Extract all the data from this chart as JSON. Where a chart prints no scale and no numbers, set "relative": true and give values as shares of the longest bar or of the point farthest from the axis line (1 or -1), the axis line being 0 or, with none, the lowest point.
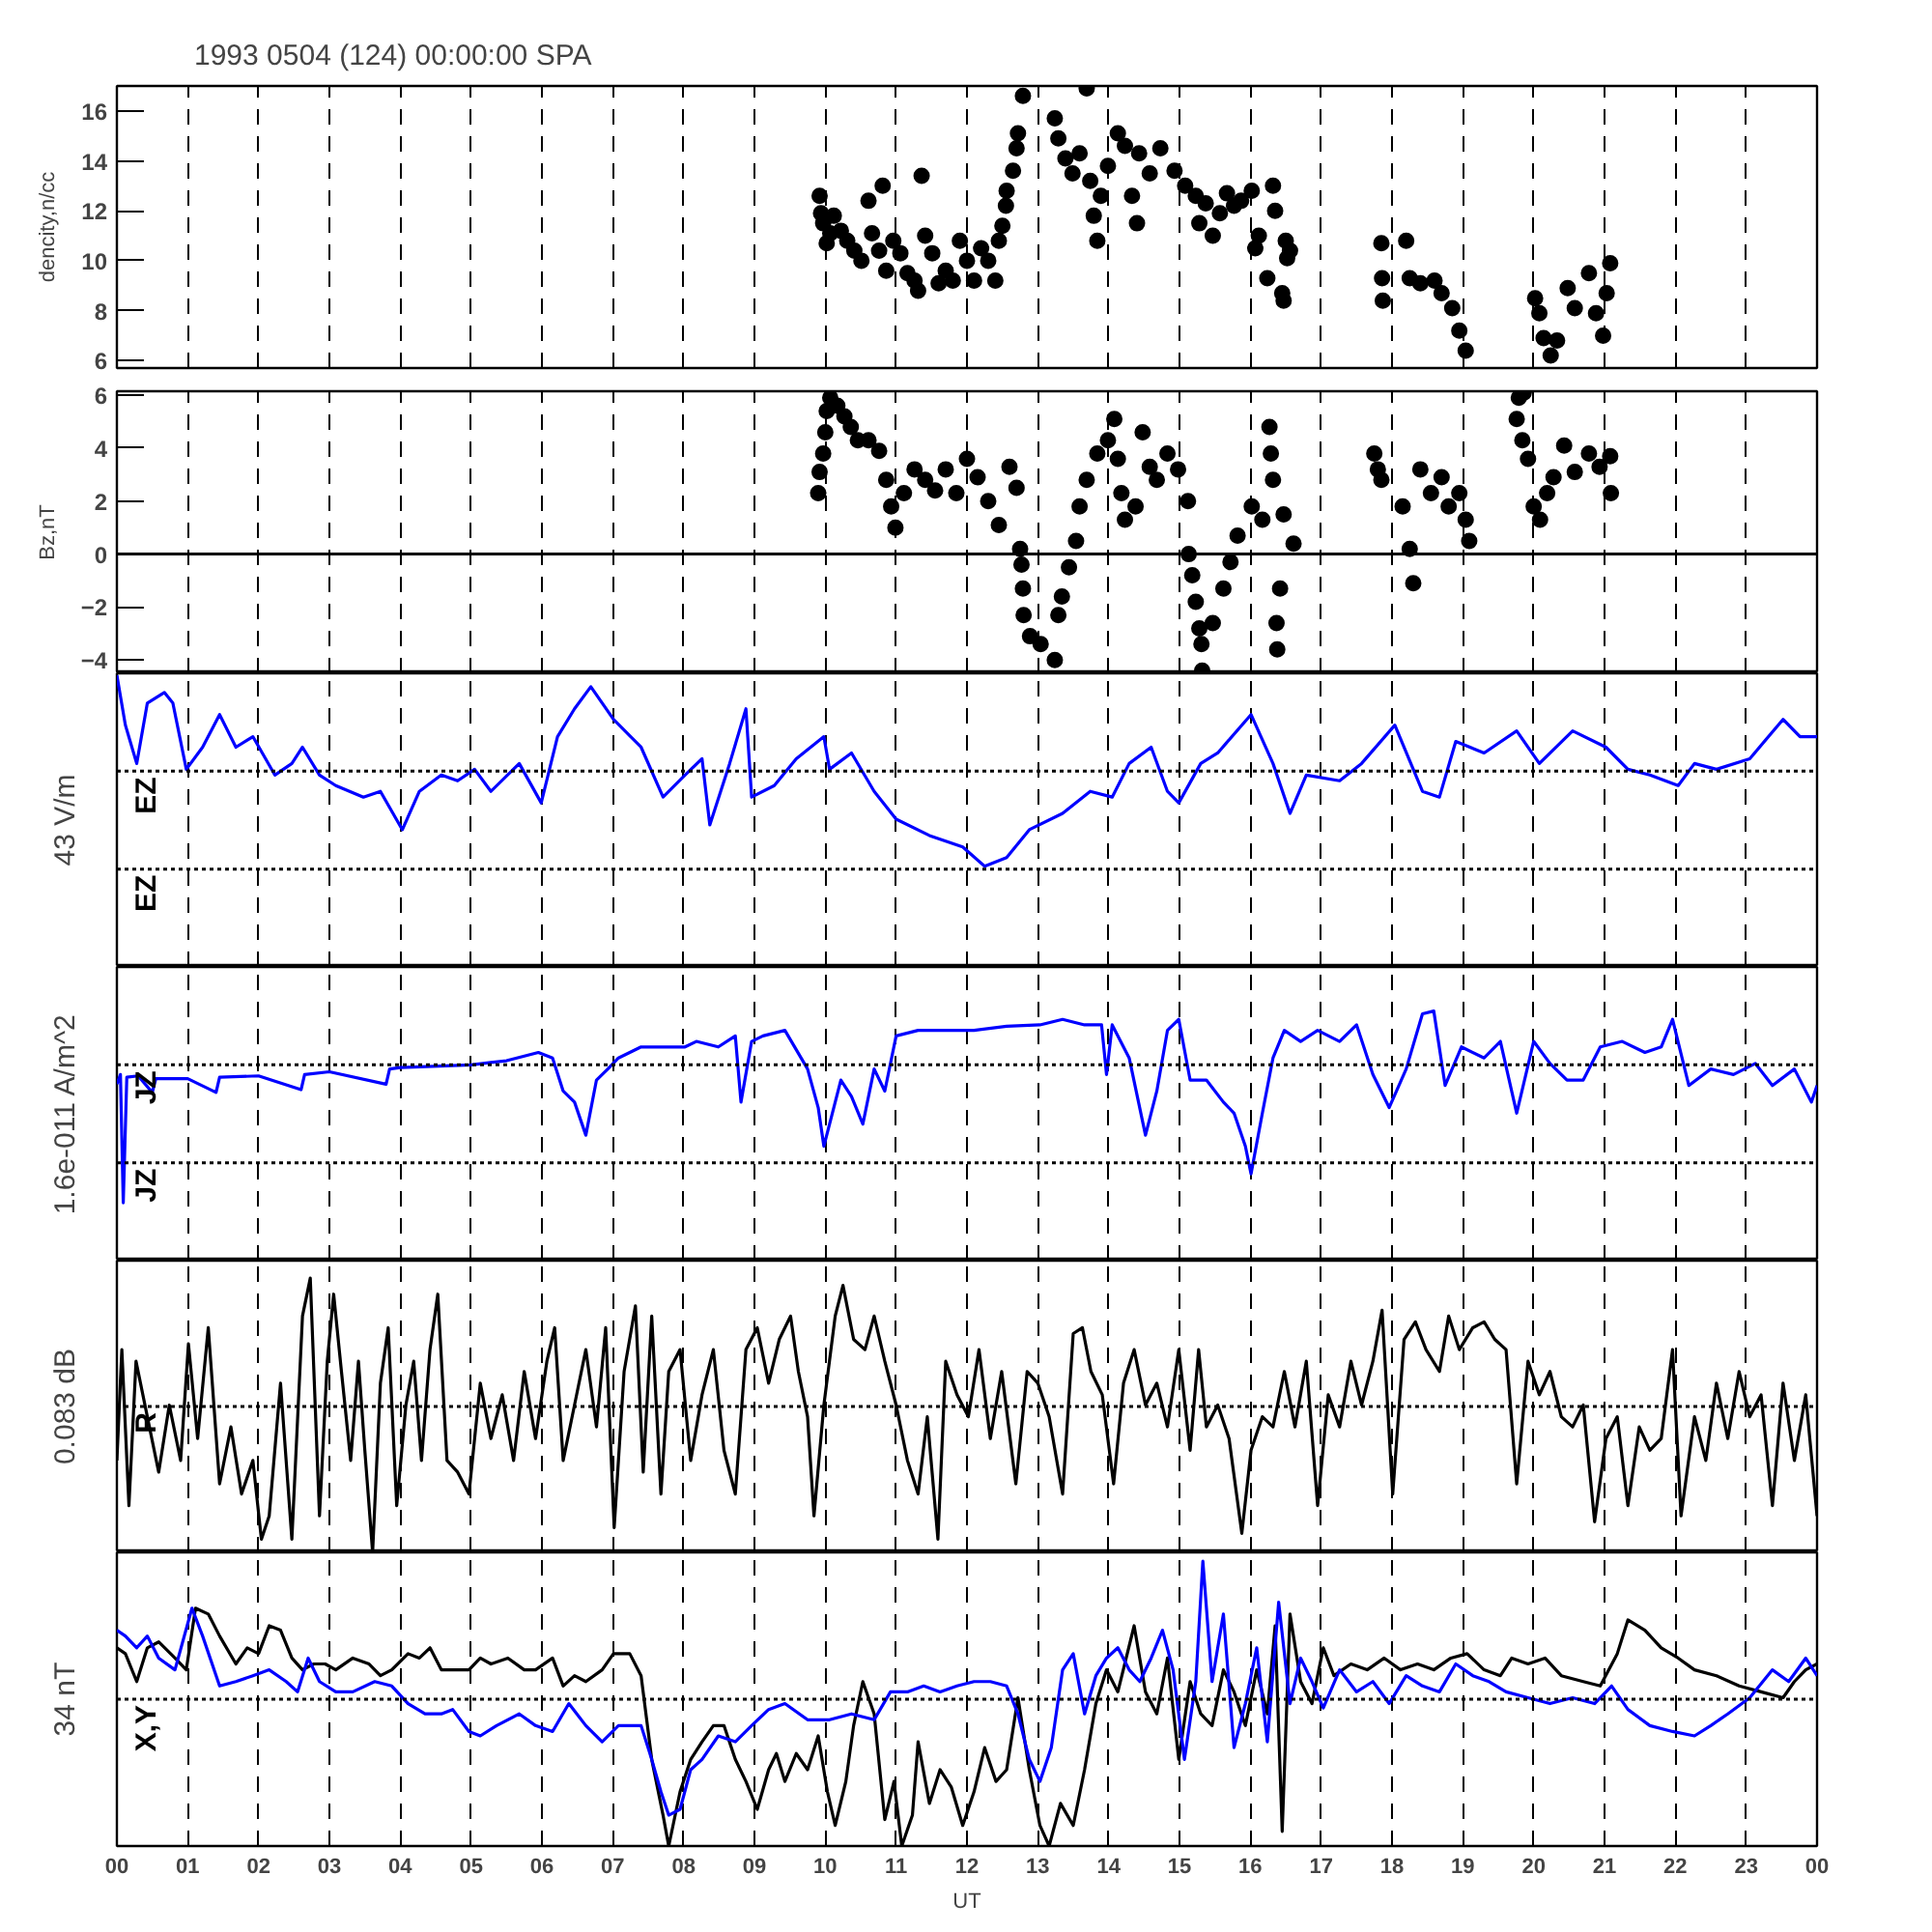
{
  "chart_data": [
    {
      "type": "scatter",
      "title": "1993 0504 (124) 00:00:00 SPA",
      "ylabel": "dencity,n/cc",
      "color": "#000000",
      "marker": "circle",
      "x": [
        9.92,
        9.94,
        9.97,
        10.02,
        10.07,
        10.12,
        10.22,
        10.31,
        10.41,
        10.51,
        10.61,
        10.66,
        10.76,
        10.81,
        10.86,
        10.96,
        11.06,
        11.16,
        11.26,
        11.31,
        11.36,
        11.41,
        11.51,
        11.6,
        11.7,
        11.8,
        11.9,
        12.0,
        12.1,
        12.2,
        12.3,
        12.4,
        12.45,
        12.5,
        12.55,
        12.56,
        12.65,
        12.7,
        12.72,
        12.79,
        13.24,
        13.29,
        13.39,
        13.49,
        13.59,
        13.69,
        13.74,
        13.79,
        13.84,
        13.89,
        13.99,
        14.13,
        14.23,
        14.33,
        14.4,
        14.43,
        14.58,
        14.73,
        14.93,
        15.08,
        15.23,
        15.28,
        15.37,
        15.47,
        15.57,
        15.67,
        15.77,
        15.87,
        16.02,
        16.07,
        16.12,
        16.24,
        16.32,
        16.35,
        16.45,
        16.47,
        16.5,
        16.52,
        16.56,
        17.85,
        17.86,
        17.87,
        18.2,
        18.25,
        18.4,
        18.6,
        18.7,
        18.85,
        18.95,
        19.04,
        20.02,
        20.08,
        20.14,
        20.24,
        20.33,
        20.48,
        20.58,
        20.78,
        20.88,
        20.98,
        21.03,
        21.08
      ],
      "values": [
        12.6,
        11.9,
        11.5,
        10.7,
        11.1,
        11.8,
        11.2,
        10.8,
        10.4,
        10.0,
        12.4,
        11.1,
        10.4,
        13.0,
        9.6,
        10.8,
        10.3,
        9.5,
        9.2,
        8.8,
        13.4,
        11.0,
        10.3,
        9.1,
        9.6,
        9.2,
        10.8,
        10.0,
        9.2,
        10.5,
        10.0,
        9.2,
        10.8,
        11.4,
        12.2,
        12.8,
        13.6,
        14.5,
        15.1,
        16.6,
        15.7,
        14.9,
        14.1,
        13.5,
        14.3,
        16.9,
        13.2,
        11.8,
        10.8,
        12.6,
        13.8,
        15.1,
        14.6,
        12.6,
        11.5,
        14.3,
        13.5,
        14.5,
        13.6,
        13.0,
        12.6,
        11.5,
        12.3,
        11.0,
        11.9,
        12.7,
        12.2,
        12.4,
        12.8,
        10.5,
        11.0,
        9.3,
        13.0,
        12.0,
        8.7,
        8.4,
        10.8,
        10.1,
        10.4,
        10.7,
        9.3,
        8.4,
        10.8,
        9.3,
        9.1,
        9.2,
        8.7,
        8.1,
        7.2,
        6.4,
        8.5,
        7.9,
        6.9,
        6.2,
        6.8,
        8.9,
        8.1,
        9.5,
        7.9,
        7.0,
        8.7,
        9.9
      ],
      "xlim": [
        0,
        24
      ],
      "xticks": [
        0,
        1,
        2,
        3,
        4,
        5,
        6,
        7,
        8,
        9,
        10,
        11,
        12,
        13,
        14,
        15,
        16,
        17,
        18,
        19,
        20,
        21,
        22,
        23,
        24
      ],
      "ylim": [
        5.7,
        17
      ],
      "yticks": [
        6,
        8,
        10,
        12,
        14,
        16
      ],
      "grid": "x",
      "tick_labels": "y"
    },
    {
      "type": "scatter",
      "ylabel": "Bz,nT",
      "color": "#000000",
      "marker": "circle",
      "x": [
        9.9,
        9.92,
        9.97,
        10.0,
        10.02,
        10.07,
        10.17,
        10.27,
        10.36,
        10.46,
        10.61,
        10.76,
        10.86,
        10.93,
        10.99,
        11.11,
        11.26,
        11.41,
        11.55,
        11.7,
        11.85,
        12.0,
        12.15,
        12.3,
        12.45,
        12.6,
        12.7,
        12.75,
        12.77,
        12.79,
        12.8,
        12.89,
        13.04,
        13.24,
        13.29,
        13.34,
        13.44,
        13.54,
        13.59,
        13.69,
        13.84,
        13.99,
        14.08,
        14.13,
        14.18,
        14.23,
        14.38,
        14.48,
        14.58,
        14.68,
        14.83,
        14.98,
        15.12,
        15.13,
        15.18,
        15.23,
        15.28,
        15.31,
        15.32,
        15.47,
        15.62,
        15.72,
        15.82,
        16.02,
        16.17,
        16.27,
        16.29,
        16.32,
        16.37,
        16.38,
        16.42,
        16.47,
        16.61,
        17.75,
        17.8,
        17.85,
        18.15,
        18.25,
        18.3,
        18.4,
        18.55,
        18.7,
        18.8,
        18.95,
        19.04,
        19.09,
        19.76,
        19.79,
        19.84,
        19.86,
        19.92,
        20.0,
        20.09,
        20.19,
        20.28,
        20.43,
        20.58,
        20.78,
        20.93,
        21.08,
        21.09
      ],
      "values": [
        2.3,
        3.1,
        3.8,
        4.6,
        5.4,
        5.9,
        5.6,
        5.2,
        4.8,
        4.3,
        4.3,
        3.9,
        2.8,
        1.8,
        1.0,
        2.3,
        3.2,
        2.8,
        2.4,
        3.2,
        2.3,
        3.6,
        2.9,
        2.0,
        1.1,
        3.3,
        2.5,
        0.2,
        -0.4,
        -1.3,
        -2.3,
        -3.1,
        -3.4,
        -4.0,
        -2.3,
        -1.6,
        -0.5,
        0.5,
        1.8,
        2.8,
        3.8,
        4.3,
        5.1,
        3.6,
        2.3,
        1.3,
        1.8,
        4.6,
        3.3,
        2.8,
        3.8,
        3.2,
        2.0,
        0.0,
        -0.8,
        -1.8,
        -2.8,
        -3.4,
        -4.4,
        -2.6,
        -1.3,
        -0.3,
        0.7,
        1.8,
        1.3,
        4.8,
        3.8,
        2.8,
        -2.6,
        -3.6,
        -1.3,
        1.5,
        0.4,
        3.8,
        3.2,
        2.8,
        1.8,
        0.2,
        -1.1,
        3.2,
        2.3,
        2.9,
        1.8,
        2.3,
        1.3,
        0.5,
        5.1,
        5.9,
        4.3,
        6.1,
        3.6,
        1.8,
        1.3,
        2.3,
        2.9,
        4.1,
        3.1,
        3.8,
        3.3,
        3.7,
        2.3
      ],
      "xlim": [
        0,
        24
      ],
      "xticks": [
        0,
        1,
        2,
        3,
        4,
        5,
        6,
        7,
        8,
        9,
        10,
        11,
        12,
        13,
        14,
        15,
        16,
        17,
        18,
        19,
        20,
        21,
        22,
        23,
        24
      ],
      "ylim": [
        -4.5,
        6.15
      ],
      "yticks": [
        -4,
        -2,
        0,
        2,
        4,
        6
      ],
      "ref_lines": [
        {
          "axis": "y",
          "value": 0,
          "line_style": "solid"
        }
      ],
      "grid": "x",
      "tick_labels": "y"
    },
    {
      "type": "line",
      "relative": true,
      "ylabel": "43 V/m",
      "series": [
        {
          "color": "#0000ff",
          "x": [
            0,
            0.12,
            0.28,
            0.43,
            0.67,
            0.79,
            0.98,
            1.21,
            1.45,
            1.68,
            1.92,
            2.23,
            2.47,
            2.62,
            2.86,
            3.09,
            3.48,
            3.72,
            4.03,
            4.27,
            4.58,
            4.81,
            5.05,
            5.28,
            5.68,
            5.99,
            6.22,
            6.46,
            6.69,
            7.01,
            7.4,
            7.71,
            8.02,
            8.26,
            8.37,
            8.65,
            8.88,
            8.96,
            9.28,
            9.59,
            9.98,
            10.06,
            10.37,
            10.69,
            11.0,
            11.47,
            11.94,
            12.25,
            12.56,
            12.88,
            13.35,
            13.74,
            14.05,
            14.29,
            14.6,
            14.83,
            14.99,
            15.3,
            15.54,
            16.01,
            16.32,
            16.56,
            16.79,
            17.26,
            17.57,
            18.04,
            18.43,
            18.67,
            18.9,
            19.3,
            19.76,
            20.08,
            20.55,
            21.02,
            21.33,
            21.64,
            22.04,
            22.27,
            22.58,
            23.05,
            23.52,
            23.76,
            24
          ],
          "values": [
            1.0,
            0.48,
            0.08,
            0.71,
            0.82,
            0.71,
            0.02,
            0.25,
            0.59,
            0.25,
            0.36,
            -0.04,
            0.08,
            0.25,
            -0.04,
            -0.15,
            -0.27,
            -0.21,
            -0.61,
            -0.21,
            -0.04,
            -0.1,
            0.02,
            -0.21,
            0.08,
            -0.33,
            0.36,
            0.65,
            0.88,
            0.54,
            0.25,
            -0.27,
            -0.04,
            0.13,
            -0.56,
            0.08,
            0.65,
            -0.27,
            -0.15,
            0.13,
            0.36,
            0.02,
            0.19,
            -0.21,
            -0.5,
            -0.67,
            -0.79,
            -0.99,
            -0.9,
            -0.61,
            -0.44,
            -0.21,
            -0.27,
            0.08,
            0.25,
            -0.21,
            -0.33,
            0.08,
            0.19,
            0.59,
            0.08,
            -0.44,
            -0.04,
            -0.1,
            0.08,
            0.48,
            -0.21,
            -0.27,
            0.31,
            0.19,
            0.42,
            0.08,
            0.42,
            0.25,
            0.02,
            -0.04,
            -0.15,
            0.08,
            0.02,
            0.13,
            0.54,
            0.36,
            0.36
          ]
        }
      ],
      "ref_lines": [
        {
          "axis": "y",
          "value": 0,
          "label": "EZ",
          "line_style": "dotted"
        },
        {
          "axis": "y",
          "value": -1.02,
          "label": "EZ",
          "line_style": "dotted"
        }
      ],
      "xlim": [
        0,
        24
      ],
      "xticks": [
        0,
        1,
        2,
        3,
        4,
        5,
        6,
        7,
        8,
        9,
        10,
        11,
        12,
        13,
        14,
        15,
        16,
        17,
        18,
        19,
        20,
        21,
        22,
        23,
        24
      ],
      "grid": "x",
      "tick_labels": false
    },
    {
      "type": "line",
      "relative": true,
      "ylabel": "1.6e-011 A/m^2",
      "series": [
        {
          "color": "#0000ff",
          "x": [
            0,
            0.05,
            0.09,
            0.14,
            0.3,
            0.5,
            0.55,
            1.0,
            1.4,
            1.45,
            2.0,
            2.6,
            2.65,
            3.0,
            3.8,
            3.85,
            4.0,
            5.0,
            5.5,
            5.95,
            6.15,
            6.3,
            6.46,
            6.62,
            6.77,
            6.93,
            7.08,
            7.4,
            7.71,
            8.02,
            8.18,
            8.49,
            8.73,
            8.81,
            8.96,
            9.12,
            9.43,
            9.75,
            9.9,
            9.98,
            10.22,
            10.37,
            10.53,
            10.69,
            10.84,
            11.0,
            11.31,
            11.62,
            12.1,
            12.56,
            13.03,
            13.35,
            13.66,
            13.9,
            13.97,
            14.05,
            14.29,
            14.52,
            14.68,
            14.83,
            14.99,
            15.15,
            15.38,
            15.62,
            15.77,
            15.93,
            16.01,
            16.17,
            16.32,
            16.48,
            16.71,
            16.95,
            17.26,
            17.5,
            17.73,
            17.96,
            18.2,
            18.43,
            18.59,
            18.75,
            18.98,
            19.3,
            19.53,
            19.76,
            20.0,
            20.23,
            20.47,
            20.7,
            20.94,
            21.25,
            21.57,
            21.8,
            21.96,
            22.19,
            22.5,
            22.82,
            23.13,
            23.37,
            23.68,
            23.92,
            24
          ],
          "values": [
            -0.14,
            -0.07,
            -1.0,
            -0.09,
            -0.08,
            -0.2,
            -0.1,
            -0.1,
            -0.2,
            -0.09,
            -0.08,
            -0.18,
            -0.07,
            -0.05,
            -0.14,
            -0.03,
            -0.02,
            0.0,
            0.03,
            0.09,
            0.05,
            -0.19,
            -0.27,
            -0.51,
            -0.11,
            -0.03,
            0.05,
            0.13,
            0.13,
            0.13,
            0.17,
            0.13,
            0.21,
            -0.27,
            0.17,
            0.21,
            0.25,
            -0.03,
            -0.31,
            -0.59,
            -0.11,
            -0.23,
            -0.43,
            -0.03,
            -0.19,
            0.21,
            0.25,
            0.25,
            0.25,
            0.28,
            0.29,
            0.33,
            0.29,
            0.29,
            -0.07,
            0.29,
            0.05,
            -0.51,
            -0.19,
            0.25,
            0.33,
            -0.11,
            -0.11,
            -0.27,
            -0.35,
            -0.59,
            -0.79,
            -0.35,
            0.05,
            0.25,
            0.17,
            0.25,
            0.17,
            0.29,
            -0.07,
            -0.31,
            -0.03,
            0.37,
            0.39,
            -0.15,
            0.13,
            0.05,
            0.17,
            -0.35,
            0.17,
            0.01,
            -0.11,
            -0.11,
            0.13,
            0.17,
            0.09,
            0.13,
            0.33,
            -0.15,
            -0.03,
            -0.07,
            0.01,
            -0.15,
            -0.03,
            -0.27,
            -0.15
          ]
        }
      ],
      "ref_lines": [
        {
          "axis": "y",
          "value": 0,
          "label": "JZ",
          "line_style": "dotted"
        },
        {
          "axis": "y",
          "value": -0.71,
          "label": "JZ",
          "line_style": "dotted"
        }
      ],
      "xlim": [
        0,
        24
      ],
      "xticks": [
        0,
        1,
        2,
        3,
        4,
        5,
        6,
        7,
        8,
        9,
        10,
        11,
        12,
        13,
        14,
        15,
        16,
        17,
        18,
        19,
        20,
        21,
        22,
        23,
        24
      ],
      "grid": "x",
      "tick_labels": false
    },
    {
      "type": "line",
      "relative": true,
      "ylabel": "0.083 dB",
      "series": [
        {
          "color": "#000000",
          "x": [
            0,
            0.07,
            0.17,
            0.27,
            0.43,
            0.59,
            0.74,
            0.9,
            1.01,
            1.14,
            1.29,
            1.45,
            1.61,
            1.76,
            1.92,
            2.04,
            2.15,
            2.31,
            2.47,
            2.62,
            2.73,
            2.86,
            2.97,
            3.06,
            3.17,
            3.3,
            3.41,
            3.5,
            3.61,
            3.72,
            3.83,
            3.95,
            4.08,
            4.19,
            4.3,
            4.42,
            4.53,
            4.66,
            4.81,
            4.97,
            5.13,
            5.28,
            5.44,
            5.6,
            5.75,
            5.91,
            6.07,
            6.18,
            6.3,
            6.46,
            6.62,
            6.77,
            6.9,
            7.02,
            7.16,
            7.32,
            7.43,
            7.55,
            7.68,
            7.79,
            7.95,
            8.1,
            8.26,
            8.42,
            8.57,
            8.73,
            8.88,
            9.04,
            9.2,
            9.35,
            9.51,
            9.62,
            9.75,
            9.84,
            9.98,
            10.14,
            10.25,
            10.4,
            10.56,
            10.69,
            10.84,
            11.0,
            11.16,
            11.31,
            11.44,
            11.59,
            11.7,
            11.86,
            12.02,
            12.17,
            12.33,
            12.49,
            12.69,
            12.85,
            13.0,
            13.16,
            13.35,
            13.5,
            13.63,
            13.75,
            13.91,
            14.07,
            14.21,
            14.36,
            14.52,
            14.68,
            14.83,
            14.99,
            15.15,
            15.27,
            15.38,
            15.54,
            15.7,
            15.88,
            16.01,
            16.17,
            16.32,
            16.48,
            16.63,
            16.79,
            16.95,
            17.1,
            17.26,
            17.42,
            17.57,
            17.73,
            17.86,
            18.01,
            18.17,
            18.33,
            18.48,
            18.67,
            18.8,
            18.95,
            19.14,
            19.3,
            19.45,
            19.61,
            19.76,
            19.92,
            20.08,
            20.23,
            20.39,
            20.55,
            20.7,
            20.86,
            21.02,
            21.18,
            21.33,
            21.49,
            21.64,
            21.8,
            21.96,
            22.08,
            22.27,
            22.43,
            22.58,
            22.74,
            22.9,
            23.05,
            23.21,
            23.37,
            23.52,
            23.68,
            23.84,
            24
          ],
          "values": [
            -0.37,
            0.39,
            -0.68,
            0.31,
            -0.07,
            -0.45,
            0.01,
            -0.37,
            0.43,
            -0.22,
            0.54,
            -0.53,
            -0.14,
            -0.6,
            -0.37,
            -0.91,
            -0.75,
            0.16,
            -0.91,
            0.62,
            0.88,
            -0.75,
            0.31,
            0.77,
            0.24,
            -0.37,
            0.31,
            -0.3,
            -1.0,
            0.16,
            0.54,
            -0.68,
            0.01,
            0.31,
            -0.37,
            0.39,
            0.77,
            -0.37,
            -0.45,
            -0.6,
            0.16,
            -0.22,
            0.08,
            -0.37,
            0.24,
            -0.22,
            0.31,
            0.54,
            -0.37,
            0.01,
            0.39,
            -0.14,
            0.54,
            -0.83,
            0.24,
            0.69,
            -0.45,
            0.62,
            -0.6,
            0.24,
            0.39,
            -0.37,
            0.08,
            0.39,
            -0.3,
            -0.6,
            0.39,
            0.54,
            0.16,
            0.46,
            0.62,
            0.24,
            -0.07,
            -0.75,
            0.01,
            0.62,
            0.83,
            0.46,
            0.39,
            0.62,
            0.31,
            0.01,
            -0.37,
            -0.6,
            -0.07,
            -0.91,
            0.31,
            0.08,
            -0.07,
            0.39,
            -0.22,
            0.24,
            -0.53,
            0.24,
            0.16,
            -0.07,
            -0.6,
            0.5,
            0.54,
            0.24,
            0.08,
            -0.53,
            0.16,
            0.39,
            0.01,
            0.16,
            -0.14,
            0.39,
            -0.3,
            0.39,
            -0.14,
            0.01,
            -0.22,
            -0.87,
            -0.3,
            -0.07,
            -0.14,
            0.24,
            -0.14,
            0.31,
            -0.68,
            0.08,
            -0.14,
            0.31,
            0.01,
            0.31,
            0.66,
            -0.6,
            0.46,
            0.58,
            0.39,
            0.24,
            0.62,
            0.39,
            0.54,
            0.58,
            0.46,
            0.39,
            -0.53,
            0.31,
            0.08,
            0.24,
            -0.07,
            -0.14,
            0.01,
            -0.79,
            -0.22,
            -0.07,
            -0.68,
            -0.14,
            -0.3,
            -0.22,
            0.39,
            -0.75,
            -0.07,
            -0.37,
            0.16,
            -0.22,
            0.24,
            -0.07,
            0.08,
            -0.68,
            0.16,
            -0.37,
            0.08,
            -0.75
          ]
        }
      ],
      "ref_lines": [
        {
          "axis": "y",
          "value": 0,
          "label": "R",
          "line_style": "dotted"
        }
      ],
      "xlim": [
        0,
        24
      ],
      "xticks": [
        0,
        1,
        2,
        3,
        4,
        5,
        6,
        7,
        8,
        9,
        10,
        11,
        12,
        13,
        14,
        15,
        16,
        17,
        18,
        19,
        20,
        21,
        22,
        23,
        24
      ],
      "grid": "x",
      "tick_labels": false
    },
    {
      "type": "line",
      "relative": true,
      "ylabel": "34 nT",
      "xlabel": "UT",
      "series": [
        {
          "color": "#000000",
          "x": [
            0,
            0.12,
            0.28,
            0.43,
            0.59,
            0.82,
            0.98,
            1.11,
            1.29,
            1.45,
            1.68,
            1.84,
            2.0,
            2.15,
            2.31,
            2.47,
            2.62,
            2.78,
            2.94,
            3.09,
            3.33,
            3.56,
            3.72,
            3.88,
            4.11,
            4.27,
            4.42,
            4.58,
            4.74,
            4.97,
            5.13,
            5.28,
            5.52,
            5.75,
            5.91,
            6.15,
            6.3,
            6.46,
            6.62,
            6.85,
            7.01,
            7.24,
            7.4,
            7.55,
            7.71,
            7.79,
            7.95,
            8.1,
            8.26,
            8.42,
            8.57,
            8.73,
            8.88,
            9.04,
            9.2,
            9.31,
            9.43,
            9.59,
            9.75,
            9.9,
            10.03,
            10.14,
            10.29,
            10.4,
            10.53,
            10.69,
            10.84,
            10.97,
            11.08,
            11.23,
            11.31,
            11.47,
            11.62,
            11.78,
            11.94,
            12.1,
            12.25,
            12.41,
            12.56,
            12.72,
            12.88,
            13.03,
            13.16,
            13.32,
            13.5,
            13.66,
            13.82,
            13.97,
            14.13,
            14.36,
            14.52,
            14.68,
            14.83,
            14.99,
            15.15,
            15.3,
            15.46,
            15.62,
            15.77,
            15.93,
            16.09,
            16.24,
            16.35,
            16.45,
            16.56,
            16.71,
            16.87,
            17.03,
            17.18,
            17.42,
            17.65,
            17.89,
            18.12,
            18.36,
            18.59,
            18.83,
            19.06,
            19.3,
            19.53,
            19.69,
            19.92,
            20.16,
            20.39,
            20.7,
            20.94,
            21.18,
            21.33,
            21.57,
            21.8,
            22.04,
            22.27,
            22.58,
            22.9,
            23.21,
            23.52,
            23.68,
            23.84,
            24
          ],
          "values": [
            0.35,
            0.31,
            0.12,
            0.35,
            0.39,
            0.28,
            0.2,
            0.62,
            0.58,
            0.43,
            0.24,
            0.35,
            0.31,
            0.5,
            0.47,
            0.28,
            0.2,
            0.24,
            0.24,
            0.2,
            0.28,
            0.24,
            0.16,
            0.2,
            0.31,
            0.28,
            0.35,
            0.2,
            0.2,
            0.2,
            0.28,
            0.24,
            0.28,
            0.2,
            0.2,
            0.28,
            0.09,
            0.16,
            0.12,
            0.2,
            0.31,
            0.31,
            0.16,
            -0.41,
            -0.79,
            -1.0,
            -0.63,
            -0.41,
            -0.29,
            -0.18,
            -0.18,
            -0.41,
            -0.56,
            -0.75,
            -0.48,
            -0.37,
            -0.56,
            -0.37,
            -0.48,
            -0.25,
            -0.63,
            -0.86,
            -0.56,
            -0.18,
            0.12,
            -0.1,
            -0.82,
            -0.56,
            -1.0,
            -0.79,
            -0.29,
            -0.71,
            -0.48,
            -0.6,
            -0.86,
            -0.63,
            -0.33,
            -0.56,
            -0.48,
            0.01,
            -0.48,
            -0.86,
            -1.0,
            -0.71,
            -0.86,
            -0.48,
            -0.03,
            0.2,
            0.05,
            0.5,
            0.05,
            -0.1,
            0.28,
            -0.41,
            0.12,
            -0.1,
            -0.18,
            0.2,
            0.05,
            -0.18,
            0.2,
            -0.1,
            0.5,
            -0.9,
            0.58,
            0.12,
            -0.03,
            0.35,
            0.16,
            0.24,
            0.2,
            0.28,
            0.2,
            0.24,
            0.2,
            0.28,
            0.31,
            0.2,
            0.16,
            0.28,
            0.24,
            0.28,
            0.16,
            0.12,
            0.09,
            0.31,
            0.54,
            0.47,
            0.35,
            0.28,
            0.2,
            0.16,
            0.09,
            0.05,
            0.01,
            0.12,
            0.2,
            0.24
          ]
        },
        {
          "color": "#0000ff",
          "x": [
            0,
            0.12,
            0.28,
            0.43,
            0.59,
            0.82,
            1.06,
            1.21,
            1.45,
            1.68,
            1.92,
            2.15,
            2.39,
            2.55,
            2.7,
            2.86,
            3.09,
            3.33,
            3.64,
            3.88,
            4.11,
            4.35,
            4.58,
            4.74,
            4.97,
            5.13,
            5.36,
            5.68,
            5.91,
            6.15,
            6.38,
            6.62,
            6.85,
            7.08,
            7.24,
            7.4,
            7.55,
            7.68,
            7.79,
            7.95,
            8.1,
            8.26,
            8.49,
            8.73,
            8.96,
            9.2,
            9.43,
            9.75,
            10.06,
            10.37,
            10.69,
            10.92,
            11.16,
            11.39,
            11.62,
            11.86,
            12.1,
            12.33,
            12.56,
            12.72,
            12.88,
            13.03,
            13.19,
            13.35,
            13.5,
            13.66,
            13.82,
            13.97,
            14.13,
            14.29,
            14.44,
            14.6,
            14.76,
            14.91,
            15.07,
            15.23,
            15.33,
            15.46,
            15.62,
            15.77,
            15.93,
            16.09,
            16.24,
            16.4,
            16.56,
            16.71,
            16.87,
            17.03,
            17.26,
            17.5,
            17.73,
            17.96,
            18.2,
            18.43,
            18.67,
            18.9,
            19.14,
            19.37,
            19.61,
            19.92,
            20.23,
            20.55,
            20.86,
            21.1,
            21.33,
            21.64,
            21.96,
            22.27,
            22.5,
            22.74,
            23.05,
            23.37,
            23.6,
            23.84,
            24
          ],
          "values": [
            0.47,
            0.43,
            0.35,
            0.43,
            0.28,
            0.2,
            0.62,
            0.43,
            0.09,
            0.12,
            0.16,
            0.2,
            0.12,
            0.05,
            0.28,
            0.12,
            0.05,
            0.05,
            0.12,
            0.09,
            -0.03,
            -0.1,
            -0.1,
            -0.07,
            -0.22,
            -0.25,
            -0.18,
            -0.1,
            -0.18,
            -0.22,
            -0.03,
            -0.18,
            -0.29,
            -0.18,
            -0.18,
            -0.18,
            -0.41,
            -0.63,
            -0.79,
            -0.75,
            -0.48,
            -0.41,
            -0.25,
            -0.29,
            -0.18,
            -0.07,
            -0.03,
            -0.14,
            -0.14,
            -0.1,
            -0.14,
            0.05,
            0.05,
            0.09,
            0.05,
            0.09,
            0.12,
            0.12,
            0.09,
            -0.1,
            -0.41,
            -0.56,
            -0.33,
            0.2,
            0.31,
            -0.1,
            0.16,
            0.28,
            0.35,
            0.2,
            0.12,
            0.28,
            0.47,
            0.2,
            -0.41,
            0.12,
            0.94,
            0.12,
            0.58,
            -0.33,
            -0.03,
            0.35,
            -0.29,
            0.66,
            -0.03,
            0.28,
            0.12,
            -0.06,
            0.2,
            0.05,
            0.12,
            -0.03,
            0.16,
            0.09,
            0.05,
            0.24,
            0.16,
            0.12,
            0.05,
            0.01,
            -0.03,
            0.01,
            -0.03,
            0.09,
            -0.07,
            -0.18,
            -0.22,
            -0.25,
            -0.18,
            -0.1,
            0.01,
            0.2,
            0.12,
            0.28,
            0.16
          ]
        }
      ],
      "ref_lines": [
        {
          "axis": "y",
          "value": 0,
          "label": "X,Y",
          "line_style": "dotted"
        }
      ],
      "xlim": [
        0,
        24
      ],
      "xticks": [
        {
          "value": 0,
          "label": "00"
        },
        {
          "value": 1,
          "label": "01"
        },
        {
          "value": 2,
          "label": "02"
        },
        {
          "value": 3,
          "label": "03"
        },
        {
          "value": 4,
          "label": "04"
        },
        {
          "value": 5,
          "label": "05"
        },
        {
          "value": 6,
          "label": "06"
        },
        {
          "value": 7,
          "label": "07"
        },
        {
          "value": 8,
          "label": "08"
        },
        {
          "value": 9,
          "label": "09"
        },
        {
          "value": 10,
          "label": "10"
        },
        {
          "value": 11,
          "label": "11"
        },
        {
          "value": 12,
          "label": "12"
        },
        {
          "value": 13,
          "label": "13"
        },
        {
          "value": 14,
          "label": "14"
        },
        {
          "value": 15,
          "label": "15"
        },
        {
          "value": 16,
          "label": "16"
        },
        {
          "value": 17,
          "label": "17"
        },
        {
          "value": 18,
          "label": "18"
        },
        {
          "value": 19,
          "label": "19"
        },
        {
          "value": 20,
          "label": "20"
        },
        {
          "value": 21,
          "label": "21"
        },
        {
          "value": 22,
          "label": "22"
        },
        {
          "value": 23,
          "label": "23"
        },
        {
          "value": 24,
          "label": "00"
        }
      ],
      "grid": "x",
      "tick_labels": "x"
    }
  ]
}
